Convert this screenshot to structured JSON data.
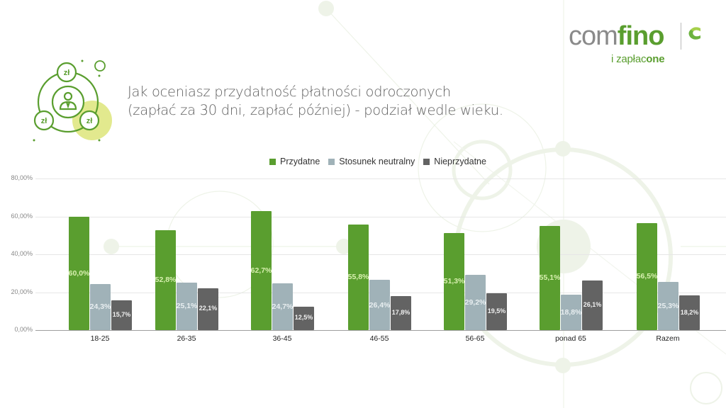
{
  "header": {
    "title_line1": "Jak oceniasz przydatność płatności odroczonych",
    "title_line2": "(zapłać za 30 dni, zapłać później) - podział wedle wieku."
  },
  "logo": {
    "part1": "com",
    "part2": "fino",
    "sub1": "i zapłac",
    "sub2": "one"
  },
  "icon": {
    "currency_label": "zł"
  },
  "colors": {
    "przydatne": "#5a9e2f",
    "neutralny": "#a0b2b8",
    "nieprzydatne": "#636363",
    "accent_yellow": "#dde57a"
  },
  "chart_data": {
    "type": "bar",
    "title": "Jak oceniasz przydatność płatności odroczonych (zapłać za 30 dni, zapłać później) - podział wedle wieku.",
    "xlabel": "",
    "ylabel": "",
    "categories": [
      "18-25",
      "26-35",
      "36-45",
      "46-55",
      "56-65",
      "ponad 65",
      "Razem"
    ],
    "series": [
      {
        "name": "Przydatne",
        "values": [
          60.0,
          52.8,
          62.7,
          55.8,
          51.3,
          55.1,
          56.5
        ],
        "labels": [
          "60,0%",
          "52,8%",
          "62,7%",
          "55,8%",
          "51,3%",
          "55,1%",
          "56,5%"
        ]
      },
      {
        "name": "Stosunek neutralny",
        "values": [
          24.3,
          25.1,
          24.7,
          26.4,
          29.2,
          18.8,
          25.3
        ],
        "labels": [
          "24,3%",
          "25,1%",
          "24,7%",
          "26,4%",
          "29,2%",
          "18,8%",
          "25,3%"
        ]
      },
      {
        "name": "Nieprzydatne",
        "values": [
          15.7,
          22.1,
          12.5,
          17.8,
          19.5,
          26.1,
          18.2
        ],
        "labels": [
          "15,7%",
          "22,1%",
          "12,5%",
          "17,8%",
          "19,5%",
          "26,1%",
          "18,2%"
        ]
      }
    ],
    "yticks": [
      "0,00%",
      "20,00%",
      "40,00%",
      "60,00%",
      "80,00%"
    ],
    "ylim": [
      0,
      80
    ],
    "grid": true,
    "legend_position": "top"
  }
}
